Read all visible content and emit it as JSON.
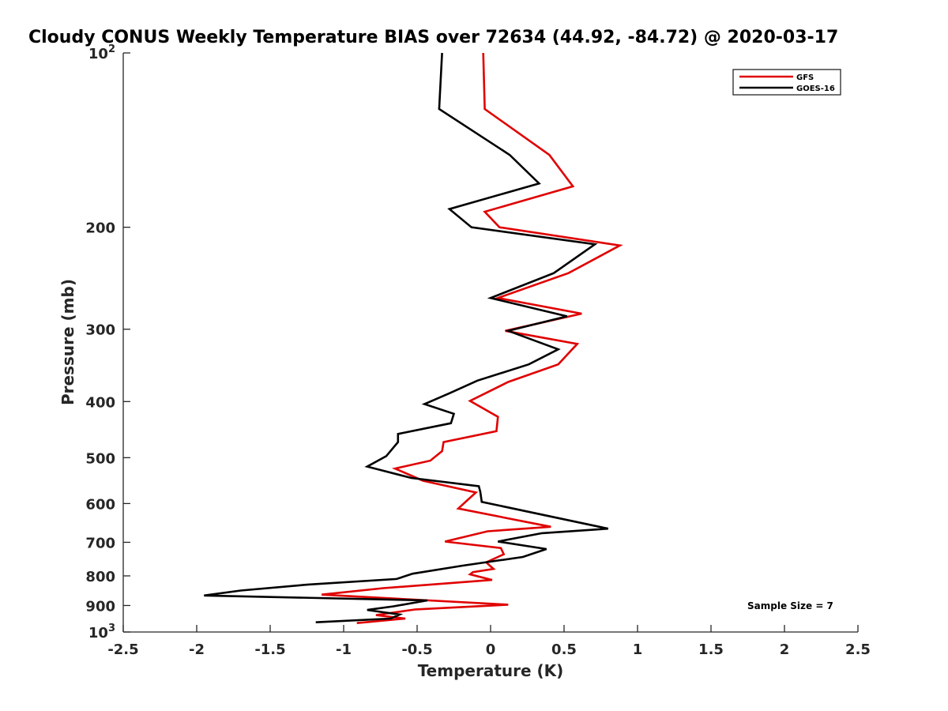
{
  "chart_data": {
    "type": "line",
    "title": "Cloudy CONUS Weekly Temperature BIAS over 72634 (44.92, -84.72) @ 2020-03-17",
    "xlabel": "Temperature (K)",
    "ylabel": "Pressure (mb)",
    "xlim": [
      -2.5,
      2.5
    ],
    "ylim": [
      100,
      1000
    ],
    "y_scale": "log",
    "y_reversed": true,
    "grid": false,
    "legend_position": "top-right",
    "x_ticks": [
      "-2.5",
      "-2",
      "-1.5",
      "-1",
      "-0.5",
      "0",
      "0.5",
      "1",
      "1.5",
      "2",
      "2.5"
    ],
    "y_ticks": [
      {
        "value": 100,
        "label": "10",
        "exp": "2"
      },
      {
        "value": 200,
        "label": "200"
      },
      {
        "value": 300,
        "label": "300"
      },
      {
        "value": 400,
        "label": "400"
      },
      {
        "value": 500,
        "label": "500"
      },
      {
        "value": 600,
        "label": "600"
      },
      {
        "value": 700,
        "label": "700"
      },
      {
        "value": 800,
        "label": "800"
      },
      {
        "value": 900,
        "label": "900"
      },
      {
        "value": 1000,
        "label": "10",
        "exp": "3"
      }
    ],
    "series": [
      {
        "name": "GFS",
        "color": "#e00000",
        "points": [
          [
            -0.05,
            100
          ],
          [
            -0.04,
            125
          ],
          [
            0.4,
            150
          ],
          [
            0.56,
            170
          ],
          [
            -0.04,
            188
          ],
          [
            0.06,
            200
          ],
          [
            0.88,
            215
          ],
          [
            0.53,
            240
          ],
          [
            0.05,
            265
          ],
          [
            0.62,
            282
          ],
          [
            0.1,
            302
          ],
          [
            0.59,
            318
          ],
          [
            0.46,
            345
          ],
          [
            0.12,
            370
          ],
          [
            -0.14,
            399
          ],
          [
            0.05,
            425
          ],
          [
            0.04,
            450
          ],
          [
            -0.32,
            470
          ],
          [
            -0.33,
            487
          ],
          [
            -0.41,
            506
          ],
          [
            -0.65,
            522
          ],
          [
            -0.46,
            548
          ],
          [
            -0.1,
            574
          ],
          [
            -0.22,
            612
          ],
          [
            0.41,
            658
          ],
          [
            -0.02,
            670
          ],
          [
            -0.31,
            698
          ],
          [
            0.07,
            716
          ],
          [
            0.09,
            734
          ],
          [
            -0.03,
            758
          ],
          [
            0.02,
            778
          ],
          [
            -0.12,
            788
          ],
          [
            -0.14,
            795
          ],
          [
            0.01,
            813
          ],
          [
            -0.73,
            840
          ],
          [
            -1.15,
            862
          ],
          [
            0.12,
            897
          ],
          [
            -0.51,
            914
          ],
          [
            -0.78,
            935
          ],
          [
            -0.58,
            948
          ],
          [
            -0.91,
            965
          ]
        ]
      },
      {
        "name": "GOES-16",
        "color": "#000000",
        "points": [
          [
            -0.33,
            100
          ],
          [
            -0.35,
            125
          ],
          [
            0.13,
            150
          ],
          [
            0.33,
            168
          ],
          [
            -0.28,
            186
          ],
          [
            -0.13,
            200
          ],
          [
            0.71,
            214
          ],
          [
            0.43,
            240
          ],
          [
            0.0,
            265
          ],
          [
            0.52,
            285
          ],
          [
            0.12,
            302
          ],
          [
            0.46,
            325
          ],
          [
            0.26,
            345
          ],
          [
            -0.09,
            368
          ],
          [
            -0.28,
            387
          ],
          [
            -0.45,
            404
          ],
          [
            -0.25,
            420
          ],
          [
            -0.27,
            436
          ],
          [
            -0.63,
            455
          ],
          [
            -0.63,
            470
          ],
          [
            -0.71,
            497
          ],
          [
            -0.84,
            518
          ],
          [
            -0.54,
            542
          ],
          [
            -0.08,
            560
          ],
          [
            -0.07,
            573
          ],
          [
            -0.06,
            596
          ],
          [
            0.8,
            663
          ],
          [
            0.35,
            675
          ],
          [
            0.05,
            698
          ],
          [
            0.38,
            719
          ],
          [
            0.22,
            742
          ],
          [
            -0.19,
            768
          ],
          [
            -0.53,
            793
          ],
          [
            -0.64,
            810
          ],
          [
            -1.24,
            828
          ],
          [
            -1.7,
            848
          ],
          [
            -1.95,
            865
          ],
          [
            -0.43,
            882
          ],
          [
            -0.66,
            903
          ],
          [
            -0.84,
            916
          ],
          [
            -0.62,
            933
          ],
          [
            -0.68,
            948
          ],
          [
            -1.19,
            962
          ]
        ]
      }
    ],
    "annotation": "Sample Size = 7"
  }
}
